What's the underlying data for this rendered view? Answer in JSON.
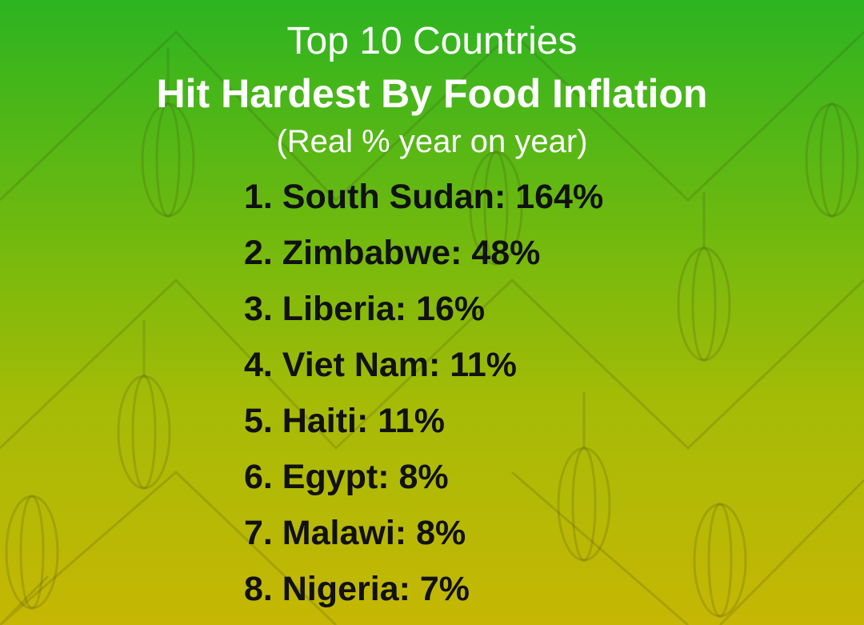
{
  "header": {
    "title": "Top 10 Countries",
    "subtitle": "Hit Hardest By Food Inflation",
    "note": "(Real % year on year)"
  },
  "items": [
    "1. South Sudan: 164%",
    "2. Zimbabwe: 48%",
    "3. Liberia: 16%",
    "4. Viet Nam: 11%",
    "5. Haiti: 11%",
    "6. Egypt: 8%",
    "7. Malawi: 8%",
    "8. Nigeria: 7%"
  ]
}
